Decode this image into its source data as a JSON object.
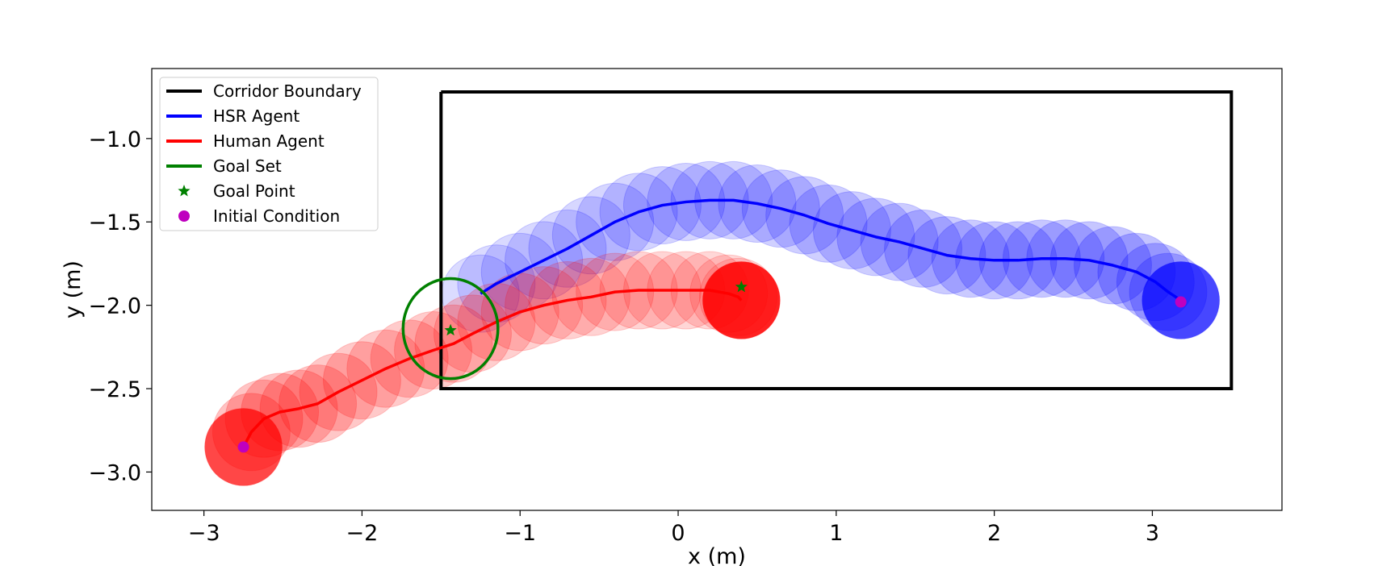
{
  "chart_data": {
    "type": "line",
    "title": "",
    "xlabel": "x (m)",
    "ylabel": "y (m)",
    "xlim": [
      -3.33,
      3.82
    ],
    "ylim": [
      -3.23,
      -0.58
    ],
    "xticks": [
      -3,
      -2,
      -1,
      0,
      1,
      2,
      3
    ],
    "xtick_labels": [
      "−3",
      "−2",
      "−1",
      "0",
      "1",
      "2",
      "3"
    ],
    "yticks": [
      -1.0,
      -1.5,
      -2.0,
      -2.5,
      -3.0
    ],
    "ytick_labels": [
      "−1.0",
      "−1.5",
      "−2.0",
      "−2.5",
      "−3.0"
    ],
    "grid": false,
    "legend_position": "top-left",
    "legend": [
      {
        "label": "Corridor Boundary",
        "kind": "line",
        "color": "#000000"
      },
      {
        "label": "HSR Agent",
        "kind": "line",
        "color": "#0000ff"
      },
      {
        "label": "Human Agent",
        "kind": "line",
        "color": "#ff0000"
      },
      {
        "label": "Goal Set",
        "kind": "line",
        "color": "#008000"
      },
      {
        "label": "Goal Point",
        "kind": "star",
        "color": "#008000"
      },
      {
        "label": "Initial Condition",
        "kind": "dot",
        "color": "#bf00bf"
      }
    ],
    "corridor": {
      "x": [
        -1.5,
        3.5,
        3.5,
        -1.5,
        -1.5
      ],
      "y": [
        -0.72,
        -0.72,
        -2.5,
        -2.5,
        -0.72
      ],
      "color": "#000000"
    },
    "agent_radius": 0.245,
    "series": [
      {
        "name": "HSR Agent",
        "color": "#0000ff",
        "x": [
          3.18,
          3.1,
          3.02,
          2.9,
          2.75,
          2.6,
          2.45,
          2.3,
          2.15,
          2.0,
          1.85,
          1.7,
          1.55,
          1.4,
          1.25,
          1.1,
          0.95,
          0.8,
          0.65,
          0.5,
          0.35,
          0.2,
          0.05,
          -0.1,
          -0.25,
          -0.4,
          -0.55,
          -0.7,
          -0.85,
          -1.0,
          -1.15,
          -1.25
        ],
        "y": [
          -1.97,
          -1.92,
          -1.86,
          -1.8,
          -1.76,
          -1.73,
          -1.72,
          -1.72,
          -1.73,
          -1.73,
          -1.72,
          -1.7,
          -1.66,
          -1.62,
          -1.59,
          -1.55,
          -1.51,
          -1.46,
          -1.42,
          -1.39,
          -1.37,
          -1.37,
          -1.38,
          -1.4,
          -1.44,
          -1.5,
          -1.58,
          -1.66,
          -1.73,
          -1.8,
          -1.87,
          -1.93
        ]
      },
      {
        "name": "Human Agent",
        "color": "#ff0000",
        "x": [
          -2.75,
          -2.7,
          -2.62,
          -2.52,
          -2.4,
          -2.28,
          -2.15,
          -2.0,
          -1.85,
          -1.7,
          -1.55,
          -1.42,
          -1.3,
          -1.15,
          -1.0,
          -0.85,
          -0.7,
          -0.55,
          -0.4,
          -0.25,
          -0.1,
          0.05,
          0.2,
          0.32,
          0.38,
          0.4
        ],
        "y": [
          -2.85,
          -2.76,
          -2.68,
          -2.64,
          -2.62,
          -2.59,
          -2.52,
          -2.45,
          -2.38,
          -2.32,
          -2.27,
          -2.23,
          -2.17,
          -2.1,
          -2.04,
          -2.0,
          -1.97,
          -1.95,
          -1.92,
          -1.91,
          -1.91,
          -1.91,
          -1.91,
          -1.93,
          -1.95,
          -1.97
        ]
      }
    ],
    "goal_set": {
      "center": [
        -1.44,
        -2.14
      ],
      "rx": 0.3,
      "ry": 0.3,
      "color": "#008000"
    },
    "goal_points": [
      {
        "x": -1.44,
        "y": -2.15,
        "color": "#008000"
      },
      {
        "x": 0.4,
        "y": -1.89,
        "color": "#008000"
      }
    ],
    "initial_conditions": [
      {
        "x": -2.75,
        "y": -2.85,
        "color": "#bf00bf"
      },
      {
        "x": 3.18,
        "y": -1.98,
        "color": "#bf00bf"
      }
    ]
  }
}
